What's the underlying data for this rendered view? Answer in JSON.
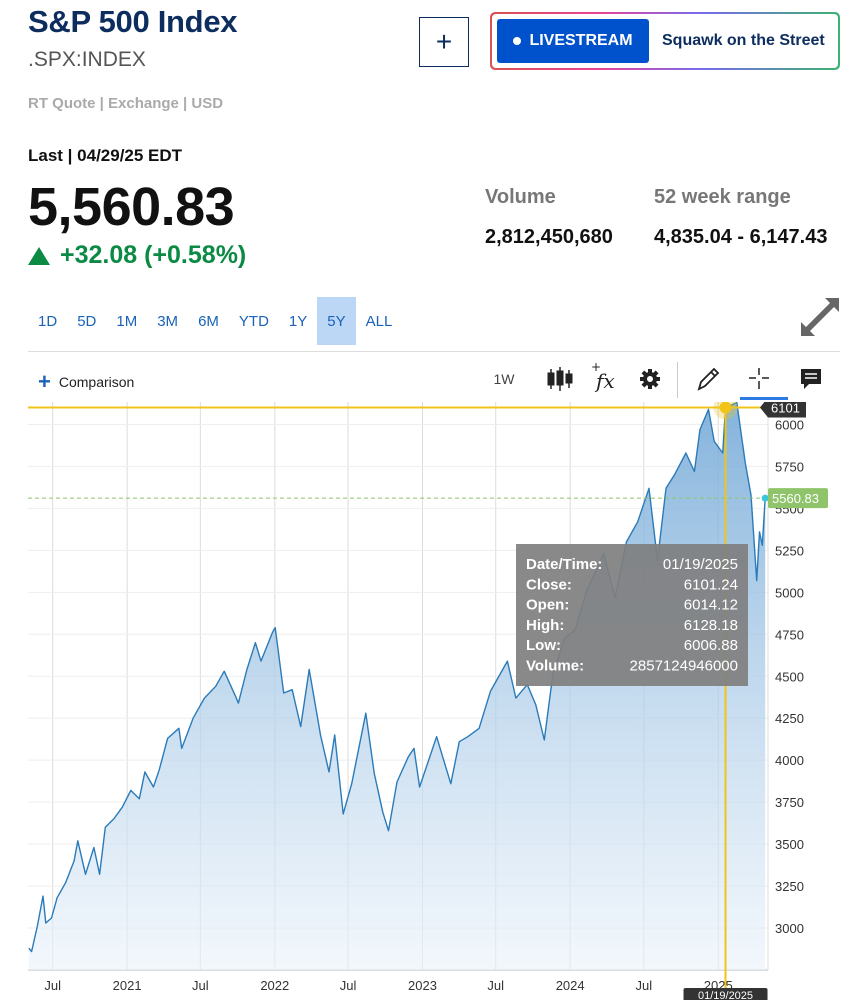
{
  "header": {
    "title": "S&P 500 Index",
    "symbol": ".SPX:INDEX",
    "quote_meta": "RT Quote | Exchange | USD",
    "add_label": "+",
    "livestream_label": "LIVESTREAM",
    "show_name": "Squawk on the Street"
  },
  "quote": {
    "last_label": "Last | 04/29/25 EDT",
    "price": "5,560.83",
    "change": "+32.08 (+0.58%)",
    "volume_label": "Volume",
    "volume_value": "2,812,450,680",
    "range_label": "52 week range",
    "range_value": "4,835.04 - 6,147.43"
  },
  "ranges": [
    "1D",
    "5D",
    "1M",
    "3M",
    "6M",
    "YTD",
    "1Y",
    "5Y",
    "ALL"
  ],
  "active_range": "5Y",
  "toolbar": {
    "comparison_label": "Comparison",
    "interval_label": "1W"
  },
  "colors": {
    "brand": "#0c2d5e",
    "accent": "#1a63b8",
    "positive": "#0b8a44",
    "series_line": "#2b7bb9",
    "crosshair": "#f0c419",
    "last_price_badge": "#8fc46a"
  },
  "chart_data": {
    "type": "area",
    "series_name": "S&P 500 Index",
    "x_ticks": [
      "Jul",
      "2021",
      "Jul",
      "2022",
      "Jul",
      "2023",
      "Jul",
      "2024",
      "Jul",
      "2025"
    ],
    "y_ticks": [
      3000,
      3250,
      3500,
      3750,
      4000,
      4250,
      4500,
      4750,
      5000,
      5250,
      5500,
      5750,
      6000
    ],
    "ylim": [
      2750,
      6110
    ],
    "xlim": [
      "2020-05-01",
      "2025-05-04"
    ],
    "points": [
      [
        "2020-05-03",
        2880
      ],
      [
        "2020-05-10",
        2860
      ],
      [
        "2020-05-24",
        3010
      ],
      [
        "2020-06-07",
        3190
      ],
      [
        "2020-06-14",
        3030
      ],
      [
        "2020-06-28",
        3060
      ],
      [
        "2020-07-12",
        3180
      ],
      [
        "2020-08-02",
        3270
      ],
      [
        "2020-08-23",
        3400
      ],
      [
        "2020-09-01",
        3520
      ],
      [
        "2020-09-20",
        3320
      ],
      [
        "2020-10-11",
        3480
      ],
      [
        "2020-10-25",
        3320
      ],
      [
        "2020-11-08",
        3600
      ],
      [
        "2020-11-29",
        3650
      ],
      [
        "2020-12-20",
        3720
      ],
      [
        "2021-01-10",
        3820
      ],
      [
        "2021-01-31",
        3770
      ],
      [
        "2021-02-14",
        3930
      ],
      [
        "2021-03-07",
        3840
      ],
      [
        "2021-03-21",
        3940
      ],
      [
        "2021-04-11",
        4130
      ],
      [
        "2021-05-09",
        4190
      ],
      [
        "2021-05-16",
        4070
      ],
      [
        "2021-06-13",
        4250
      ],
      [
        "2021-07-11",
        4370
      ],
      [
        "2021-08-08",
        4440
      ],
      [
        "2021-08-29",
        4530
      ],
      [
        "2021-09-26",
        4380
      ],
      [
        "2021-10-03",
        4340
      ],
      [
        "2021-10-24",
        4540
      ],
      [
        "2021-11-14",
        4700
      ],
      [
        "2021-11-28",
        4590
      ],
      [
        "2021-12-26",
        4760
      ],
      [
        "2022-01-02",
        4790
      ],
      [
        "2022-01-23",
        4400
      ],
      [
        "2022-02-13",
        4420
      ],
      [
        "2022-03-06",
        4200
      ],
      [
        "2022-03-27",
        4540
      ],
      [
        "2022-04-24",
        4150
      ],
      [
        "2022-05-15",
        3930
      ],
      [
        "2022-05-29",
        4150
      ],
      [
        "2022-06-19",
        3680
      ],
      [
        "2022-07-10",
        3860
      ],
      [
        "2022-08-14",
        4280
      ],
      [
        "2022-09-04",
        3920
      ],
      [
        "2022-09-25",
        3690
      ],
      [
        "2022-10-09",
        3580
      ],
      [
        "2022-10-30",
        3870
      ],
      [
        "2022-11-27",
        4020
      ],
      [
        "2022-12-11",
        4070
      ],
      [
        "2022-12-25",
        3840
      ],
      [
        "2023-01-15",
        3990
      ],
      [
        "2023-02-05",
        4140
      ],
      [
        "2023-03-12",
        3860
      ],
      [
        "2023-04-02",
        4110
      ],
      [
        "2023-04-23",
        4140
      ],
      [
        "2023-05-21",
        4190
      ],
      [
        "2023-06-18",
        4410
      ],
      [
        "2023-07-30",
        4590
      ],
      [
        "2023-08-20",
        4370
      ],
      [
        "2023-09-17",
        4450
      ],
      [
        "2023-10-08",
        4330
      ],
      [
        "2023-10-29",
        4120
      ],
      [
        "2023-11-19",
        4510
      ],
      [
        "2023-12-17",
        4720
      ],
      [
        "2024-01-14",
        4780
      ],
      [
        "2024-02-11",
        5010
      ],
      [
        "2024-03-24",
        5230
      ],
      [
        "2024-04-21",
        4970
      ],
      [
        "2024-05-19",
        5300
      ],
      [
        "2024-06-16",
        5420
      ],
      [
        "2024-07-14",
        5620
      ],
      [
        "2024-08-04",
        5190
      ],
      [
        "2024-08-25",
        5620
      ],
      [
        "2024-09-15",
        5700
      ],
      [
        "2024-10-13",
        5830
      ],
      [
        "2024-11-03",
        5720
      ],
      [
        "2024-11-17",
        5970
      ],
      [
        "2024-12-08",
        6090
      ],
      [
        "2024-12-22",
        5900
      ],
      [
        "2025-01-12",
        5830
      ],
      [
        "2025-01-19",
        6101.24
      ],
      [
        "2025-02-16",
        6130
      ],
      [
        "2025-03-09",
        5770
      ],
      [
        "2025-03-23",
        5580
      ],
      [
        "2025-04-06",
        5070
      ],
      [
        "2025-04-13",
        5360
      ],
      [
        "2025-04-20",
        5280
      ],
      [
        "2025-04-27",
        5560.83
      ]
    ],
    "last_price_label": "5560.83",
    "crosshair": {
      "date": "01/19/2025",
      "value_label": "6101"
    },
    "tooltip": [
      {
        "label": "Date/Time:",
        "value": "01/19/2025"
      },
      {
        "label": "Close:",
        "value": "6101.24"
      },
      {
        "label": "Open:",
        "value": "6014.12"
      },
      {
        "label": "High:",
        "value": "6128.18"
      },
      {
        "label": "Low:",
        "value": "6006.88"
      },
      {
        "label": "Volume:",
        "value": "2857124946000"
      }
    ],
    "grid": true
  }
}
